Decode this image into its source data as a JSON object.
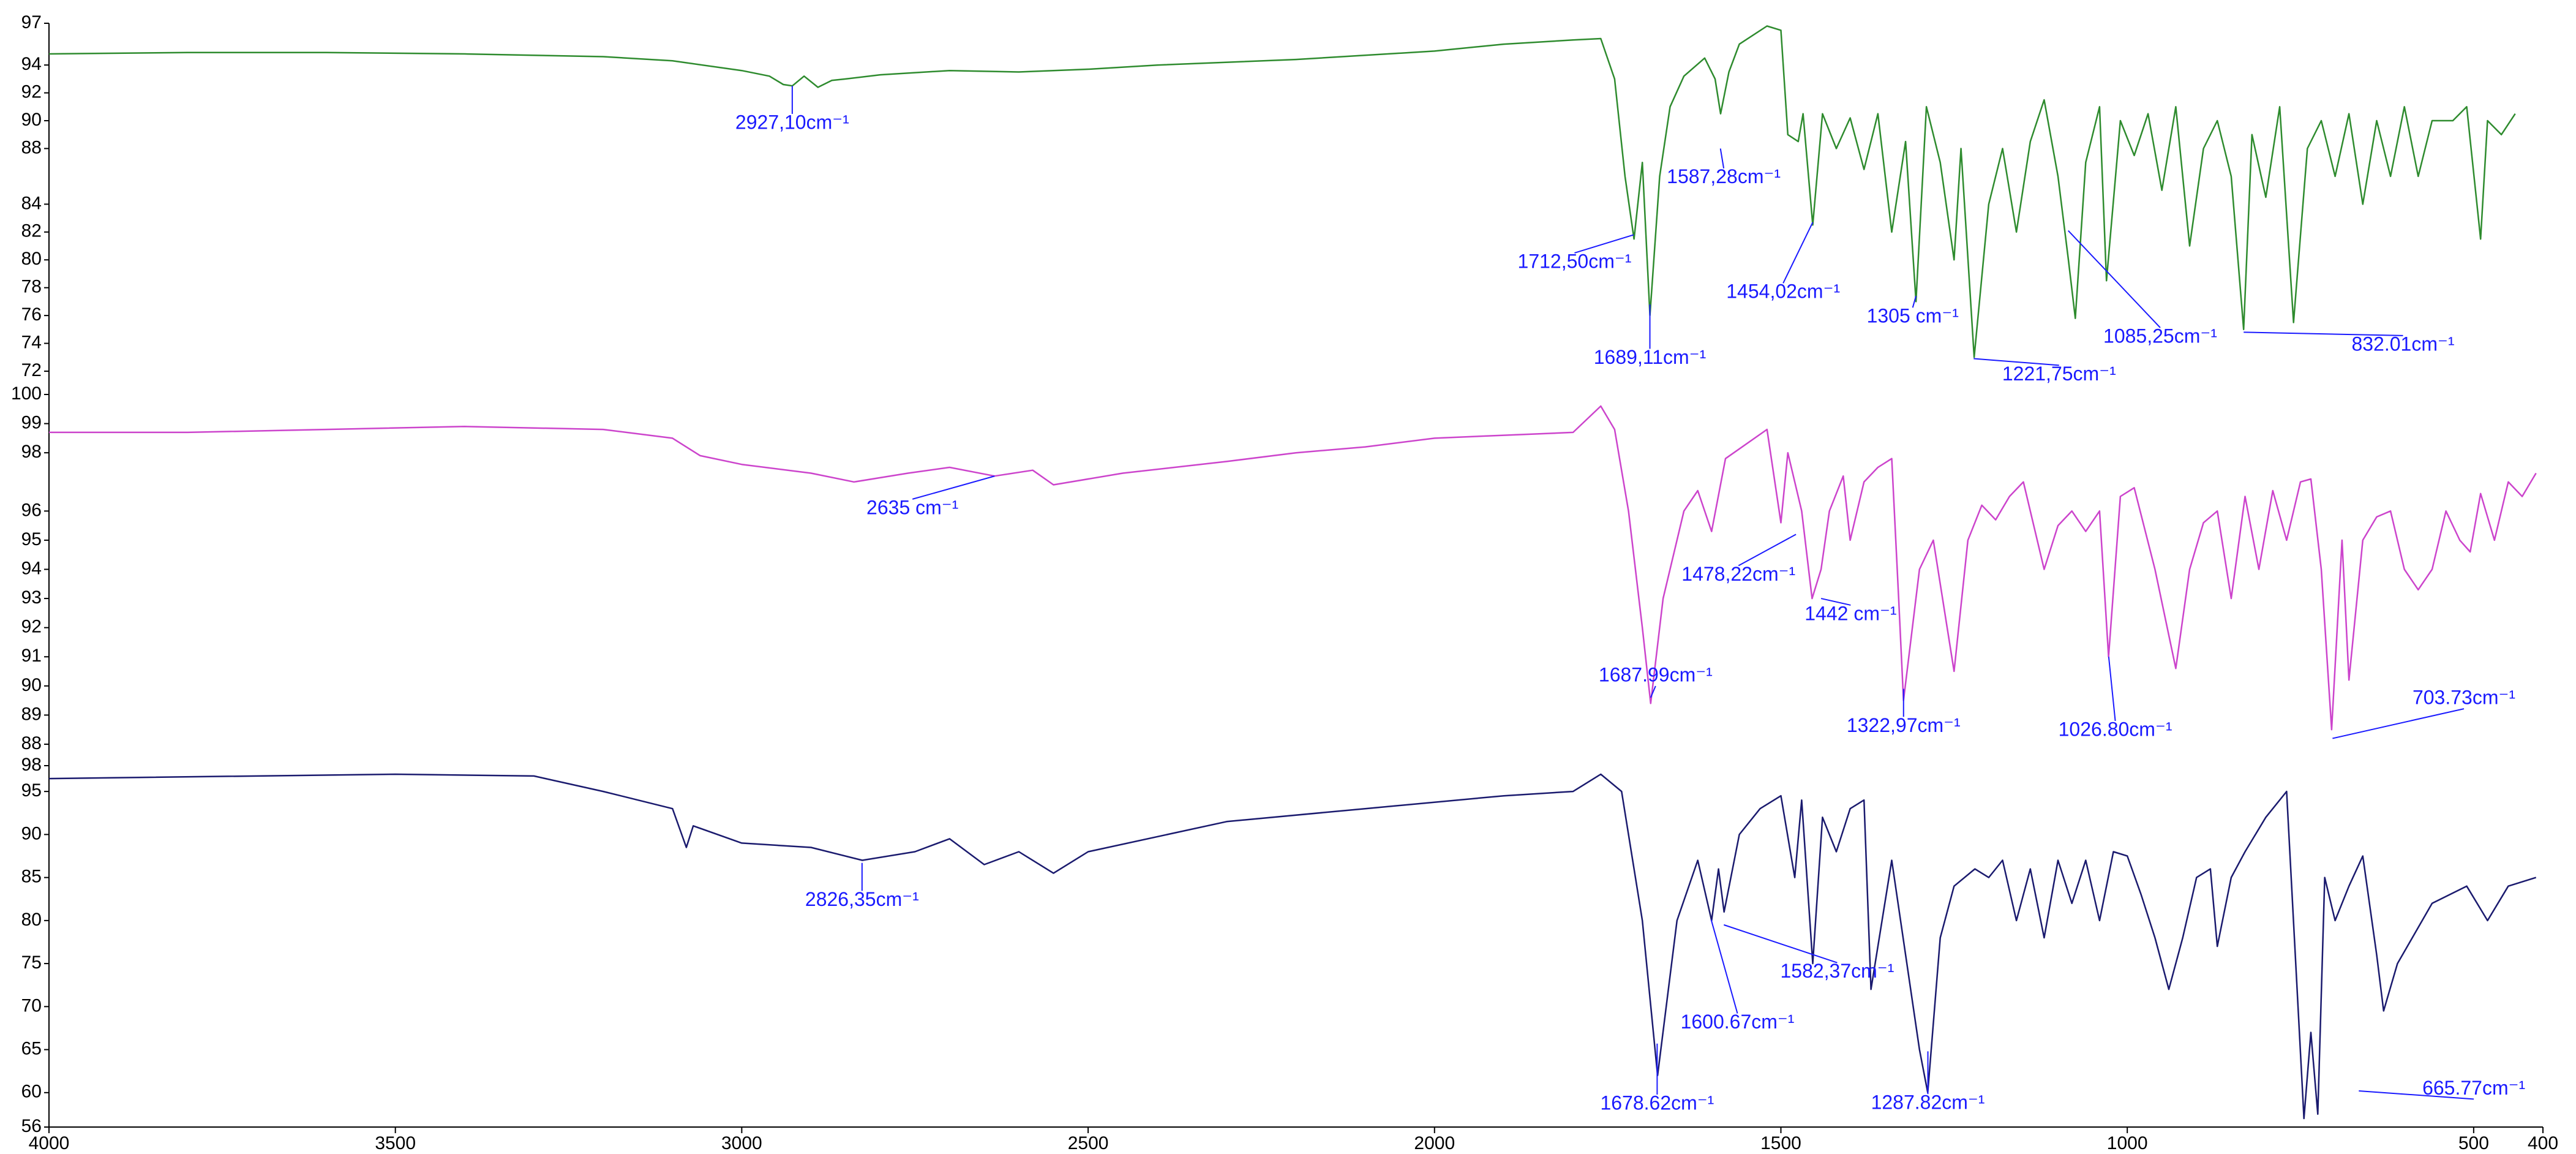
{
  "chart_data": [
    {
      "type": "line",
      "color": "#2e8b2e",
      "xlim": [
        4000,
        400
      ],
      "ylim": [
        72,
        97
      ],
      "yticks": [
        97,
        94,
        92,
        90,
        88,
        84,
        82,
        80,
        78,
        76,
        74,
        72
      ],
      "x": [
        4000,
        3800,
        3600,
        3400,
        3200,
        3100,
        3000,
        2960,
        2940,
        2927,
        2910,
        2890,
        2870,
        2850,
        2800,
        2700,
        2600,
        2500,
        2400,
        2200,
        2000,
        1900,
        1800,
        1760,
        1740,
        1725,
        1712,
        1700,
        1689,
        1675,
        1660,
        1640,
        1610,
        1595,
        1587,
        1575,
        1560,
        1520,
        1500,
        1490,
        1475,
        1468,
        1454,
        1440,
        1420,
        1400,
        1380,
        1360,
        1340,
        1320,
        1305,
        1290,
        1270,
        1250,
        1240,
        1221,
        1200,
        1180,
        1160,
        1140,
        1120,
        1100,
        1085,
        1075,
        1060,
        1040,
        1030,
        1010,
        990,
        970,
        950,
        930,
        910,
        890,
        870,
        850,
        832,
        820,
        800,
        780,
        760,
        740,
        720,
        700,
        680,
        660,
        640,
        620,
        600,
        580,
        560,
        530,
        510,
        490,
        480,
        460,
        440
      ],
      "values": [
        94.8,
        94.9,
        94.9,
        94.8,
        94.6,
        94.3,
        93.6,
        93.2,
        92.6,
        92.5,
        93.2,
        92.4,
        92.9,
        93.0,
        93.3,
        93.6,
        93.5,
        93.7,
        94.0,
        94.4,
        95.0,
        95.5,
        95.8,
        95.9,
        93,
        86,
        81.5,
        87,
        76,
        86,
        91,
        93.2,
        94.5,
        93,
        90.5,
        93.5,
        95.5,
        96.8,
        96.5,
        89,
        88.5,
        90.5,
        82.5,
        90.5,
        88,
        90.2,
        86.5,
        90.5,
        82,
        88.5,
        77,
        91,
        87,
        80,
        88,
        73,
        84,
        88,
        82,
        88.5,
        91.5,
        86,
        80,
        75.8,
        87,
        91,
        78.5,
        90,
        87.5,
        90.5,
        85,
        91,
        81,
        88,
        90,
        86,
        75,
        89,
        84.5,
        91,
        75.5,
        88,
        90,
        86,
        90.5,
        84,
        90,
        86,
        91,
        86,
        90,
        90,
        91,
        81.5,
        90,
        89,
        90.5
      ],
      "annotations": [
        {
          "text": "2927,10cm⁻¹",
          "x": 2927.1,
          "y": 92.5
        },
        {
          "text": "1712,50cm⁻¹",
          "x": 1712.5,
          "y": 81.8
        },
        {
          "text": "1689,11cm⁻¹",
          "x": 1689.11,
          "y": 76.8
        },
        {
          "text": "1587,28cm⁻¹",
          "x": 1587.28,
          "y": 88.0
        },
        {
          "text": "1454,02cm⁻¹",
          "x": 1454.02,
          "y": 82.7
        },
        {
          "text": "1305 cm⁻¹",
          "x": 1305,
          "y": 77.4
        },
        {
          "text": "1221,75cm⁻¹",
          "x": 1221.75,
          "y": 72.9
        },
        {
          "text": "1085,25cm⁻¹",
          "x": 1085.25,
          "y": 82.1
        },
        {
          "text": "832.01cm⁻¹",
          "x": 832.01,
          "y": 74.8
        }
      ]
    },
    {
      "type": "line",
      "color": "#cc44cc",
      "xlim": [
        4000,
        400
      ],
      "ylim": [
        88,
        100
      ],
      "yticks": [
        100,
        99,
        98,
        96,
        95,
        94,
        93,
        92,
        91,
        90,
        89,
        88
      ],
      "x": [
        4000,
        3800,
        3600,
        3400,
        3200,
        3100,
        3060,
        3000,
        2900,
        2838,
        2760,
        2700,
        2635,
        2580,
        2550,
        2450,
        2300,
        2200,
        2100,
        2000,
        1900,
        1800,
        1760,
        1740,
        1720,
        1700,
        1688,
        1670,
        1640,
        1620,
        1600,
        1580,
        1520,
        1500,
        1490,
        1470,
        1455,
        1442,
        1430,
        1410,
        1400,
        1380,
        1360,
        1340,
        1330,
        1323,
        1300,
        1280,
        1260,
        1250,
        1230,
        1210,
        1190,
        1170,
        1150,
        1120,
        1100,
        1080,
        1060,
        1040,
        1027,
        1010,
        990,
        960,
        930,
        910,
        890,
        870,
        850,
        830,
        810,
        790,
        770,
        750,
        735,
        720,
        705,
        690,
        680,
        660,
        640,
        620,
        600,
        580,
        560,
        540,
        520,
        505,
        490,
        470,
        450,
        430,
        410
      ],
      "values": [
        98.7,
        98.7,
        98.8,
        98.9,
        98.8,
        98.5,
        97.9,
        97.6,
        97.3,
        97.0,
        97.3,
        97.5,
        97.2,
        97.4,
        96.9,
        97.3,
        97.7,
        98.0,
        98.2,
        98.5,
        98.6,
        98.7,
        99.6,
        98.8,
        96,
        92,
        89.4,
        93,
        96,
        96.7,
        95.3,
        97.8,
        98.8,
        95.6,
        98,
        96,
        93,
        94,
        96,
        97.2,
        95,
        97,
        97.5,
        97.8,
        93,
        89.5,
        94,
        95,
        92,
        90.5,
        95,
        96.2,
        95.7,
        96.5,
        97,
        94,
        95.5,
        96,
        95.3,
        96,
        91,
        96.5,
        96.8,
        94,
        90.6,
        94,
        95.6,
        96,
        93,
        96.5,
        94,
        96.7,
        95,
        97,
        97.1,
        94,
        88.5,
        95,
        90.2,
        95,
        95.8,
        96,
        94,
        93.3,
        94,
        96,
        95,
        94.6,
        96.6,
        95,
        97,
        96.5,
        97.3
      ],
      "annotations": [
        {
          "text": "2635 cm⁻¹",
          "x": 2635,
          "y": 97.2
        },
        {
          "text": "1687.99cm⁻¹",
          "x": 1687.99,
          "y": 89.6
        },
        {
          "text": "1478,22cm⁻¹",
          "x": 1478.22,
          "y": 95.2
        },
        {
          "text": "1442 cm⁻¹",
          "x": 1442,
          "y": 93.0
        },
        {
          "text": "1322,97cm⁻¹",
          "x": 1322.97,
          "y": 89.9
        },
        {
          "text": "1026.80cm⁻¹",
          "x": 1026.8,
          "y": 91
        },
        {
          "text": "703.73cm⁻¹",
          "x": 703.73,
          "y": 88.2
        }
      ]
    },
    {
      "type": "line",
      "color": "#1a1a6e",
      "xlim": [
        4000,
        400
      ],
      "ylim": [
        56,
        98
      ],
      "yticks": [
        98,
        95,
        90,
        85,
        80,
        75,
        70,
        65,
        60,
        56
      ],
      "xticks": [
        4000,
        3500,
        3000,
        2500,
        2000,
        1500,
        1000,
        500,
        400
      ],
      "x": [
        4000,
        3500,
        3300,
        3200,
        3100,
        3080,
        3070,
        3000,
        2900,
        2826,
        2750,
        2700,
        2650,
        2600,
        2550,
        2500,
        2300,
        2100,
        1900,
        1800,
        1760,
        1730,
        1700,
        1678,
        1650,
        1620,
        1600,
        1590,
        1582,
        1560,
        1530,
        1500,
        1480,
        1470,
        1454,
        1440,
        1420,
        1400,
        1380,
        1370,
        1340,
        1300,
        1288,
        1270,
        1250,
        1220,
        1200,
        1180,
        1160,
        1140,
        1120,
        1100,
        1080,
        1060,
        1040,
        1020,
        1000,
        980,
        960,
        940,
        920,
        900,
        880,
        870,
        850,
        830,
        800,
        770,
        745,
        735,
        725,
        715,
        700,
        680,
        660,
        640,
        630,
        610,
        560,
        510,
        480,
        450,
        410
      ],
      "values": [
        96.5,
        97,
        96.8,
        95,
        93,
        88.5,
        91,
        89,
        88.5,
        87,
        88,
        89.5,
        86.5,
        88,
        85.5,
        88,
        91.5,
        93,
        94.5,
        95,
        97,
        95,
        80,
        62,
        80,
        87,
        80,
        86,
        81,
        90,
        93,
        94.5,
        85,
        94,
        75,
        92,
        88,
        93,
        94,
        72,
        87,
        65,
        60,
        78,
        84,
        86,
        85,
        87,
        80,
        86,
        78,
        87,
        82,
        87,
        80,
        88,
        87.5,
        83,
        78,
        72,
        78,
        85,
        86,
        77,
        85,
        88,
        92,
        95,
        57,
        67,
        57.5,
        85,
        80,
        84,
        87.5,
        76,
        69.5,
        75,
        82,
        84,
        80,
        84,
        85
      ],
      "annotations": [
        {
          "text": "2826,35cm⁻¹",
          "x": 2826.35,
          "y": 86.7
        },
        {
          "text": "1600.67cm⁻¹",
          "x": 1600.67,
          "y": 80.1
        },
        {
          "text": "1582,37cm⁻¹",
          "x": 1582.37,
          "y": 79.5
        },
        {
          "text": "1678.62cm⁻¹",
          "x": 1678.62,
          "y": 65.7
        },
        {
          "text": "1287.82cm⁻¹",
          "x": 1287.82,
          "y": 64.8
        },
        {
          "text": "665.77cm⁻¹",
          "x": 665.77,
          "y": 60.2
        }
      ]
    }
  ]
}
